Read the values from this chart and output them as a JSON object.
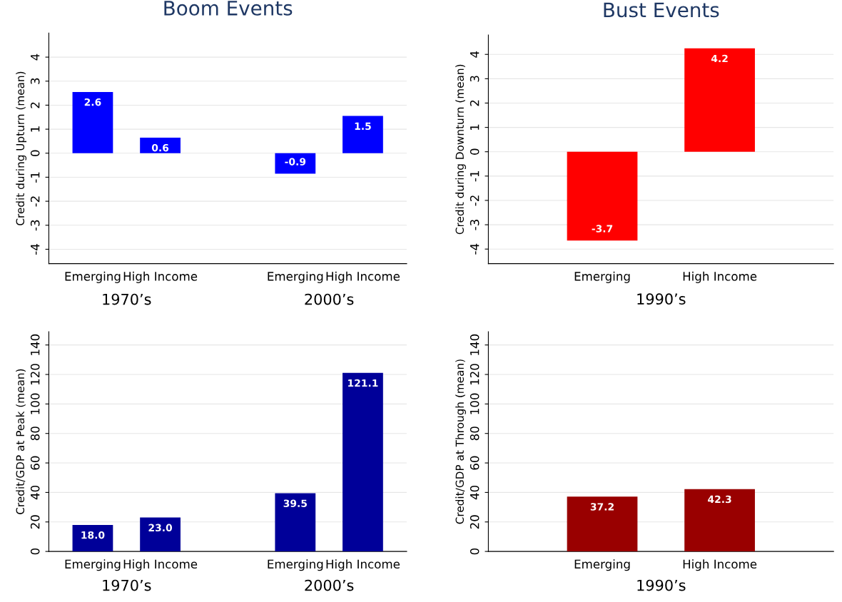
{
  "chart_data": [
    {
      "type": "bar",
      "title": "Boom Events",
      "ylabel": "Credit during Upturn (mean)",
      "categories": [
        "Emerging",
        "High Income",
        null,
        "Emerging",
        "High Income"
      ],
      "values": [
        2.55,
        0.65,
        null,
        -0.85,
        1.55
      ],
      "value_labels": [
        "2.6",
        "0.6",
        null,
        "-0.9",
        "1.5"
      ],
      "color": "#0000ff",
      "ylim": [
        -4.6,
        5
      ],
      "yticks": [
        -4,
        -3,
        -2,
        -1,
        0,
        1,
        2,
        3,
        4
      ],
      "grid": "y",
      "annotations": [
        "1970’s",
        "2000’s"
      ]
    },
    {
      "type": "bar",
      "title": "Bust Events",
      "ylabel": "Credit during Downturn (mean)",
      "categories": [
        "Emerging",
        "High Income"
      ],
      "values": [
        -3.65,
        4.25
      ],
      "value_labels": [
        "-3.7",
        "4.2"
      ],
      "color": "#ff0000",
      "ylim": [
        -4.6,
        4.8
      ],
      "yticks": [
        -4,
        -3,
        -2,
        -1,
        0,
        1,
        2,
        3,
        4
      ],
      "grid": "y",
      "annotations": [
        "1990’s"
      ]
    },
    {
      "type": "bar",
      "ylabel": "Credit/GDP at Peak (mean)",
      "categories": [
        "Emerging",
        "High Income",
        null,
        "Emerging",
        "High Income"
      ],
      "values": [
        18.0,
        23.0,
        null,
        39.5,
        121.1
      ],
      "value_labels": [
        "18.0",
        "23.0",
        null,
        "39.5",
        "121.1"
      ],
      "color": "#000099",
      "ylim": [
        0,
        149
      ],
      "yticks": [
        0,
        20,
        40,
        60,
        80,
        100,
        120,
        140
      ],
      "grid": "y",
      "annotations": [
        "1970’s",
        "2000’s"
      ]
    },
    {
      "type": "bar",
      "ylabel": "Credit/GDP at Through (mean)",
      "categories": [
        "Emerging",
        "High Income"
      ],
      "values": [
        37.2,
        42.3
      ],
      "value_labels": [
        "37.2",
        "42.3"
      ],
      "color": "#990000",
      "ylim": [
        0,
        149
      ],
      "yticks": [
        0,
        20,
        40,
        60,
        80,
        100,
        120,
        140
      ],
      "grid": "y",
      "annotations": [
        "1990’s"
      ]
    }
  ]
}
